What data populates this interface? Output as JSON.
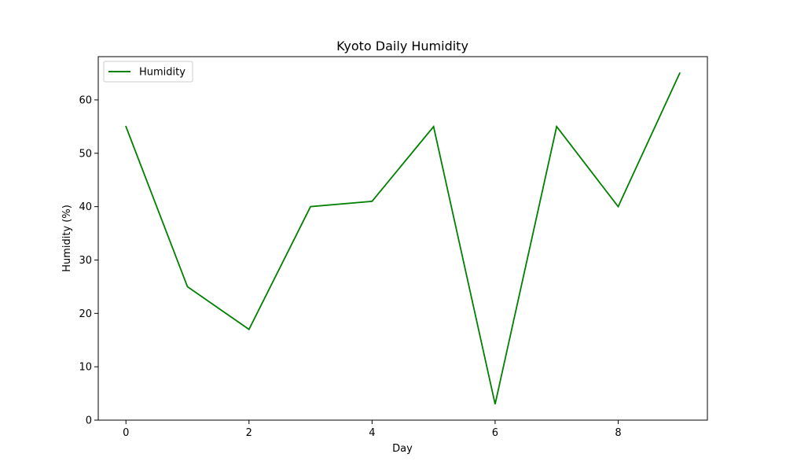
{
  "chart_data": {
    "type": "line",
    "title": "Kyoto Daily Humidity",
    "xlabel": "Day",
    "ylabel": "Humidity (%)",
    "x": [
      0,
      1,
      2,
      3,
      4,
      5,
      6,
      7,
      8,
      9
    ],
    "series": [
      {
        "name": "Humidity",
        "color": "#008000",
        "values": [
          55,
          25,
          17,
          40,
          41,
          55,
          3,
          55,
          40,
          65
        ]
      }
    ],
    "xlim": [
      -0.45,
      9.45
    ],
    "ylim": [
      0,
      68.1
    ],
    "xticks": [
      0,
      2,
      4,
      6,
      8
    ],
    "yticks": [
      0,
      10,
      20,
      30,
      40,
      50,
      60
    ],
    "grid": false,
    "legend_position": "top-left"
  }
}
